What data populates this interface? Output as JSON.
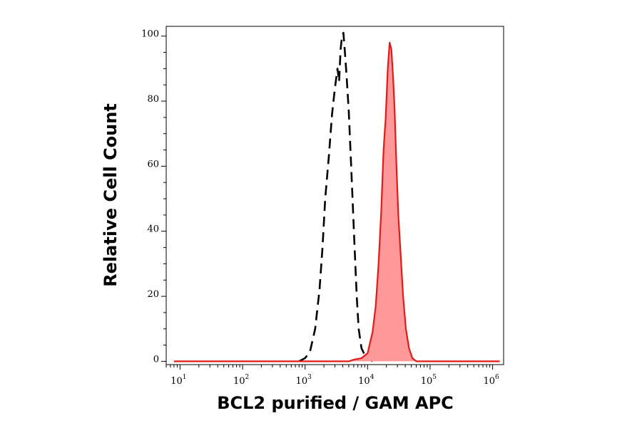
{
  "chart_data": {
    "type": "area",
    "title": "",
    "xlabel": "BCL2 purified / GAM APC",
    "ylabel": "Relative Cell Count",
    "x_scale": "log",
    "xlim": [
      6,
      1500000
    ],
    "ylim": [
      -1,
      103
    ],
    "x_ticks": [
      {
        "base": "10",
        "exp": "1",
        "value": 10
      },
      {
        "base": "10",
        "exp": "2",
        "value": 100
      },
      {
        "base": "10",
        "exp": "3",
        "value": 1000
      },
      {
        "base": "10",
        "exp": "4",
        "value": 10000
      },
      {
        "base": "10",
        "exp": "5",
        "value": 100000
      },
      {
        "base": "10",
        "exp": "6",
        "value": 1000000
      }
    ],
    "y_ticks": [
      {
        "label": "0",
        "value": 0
      },
      {
        "label": "20",
        "value": 20
      },
      {
        "label": "40",
        "value": 40
      },
      {
        "label": "60",
        "value": 60
      },
      {
        "label": "80",
        "value": 80
      },
      {
        "label": "100",
        "value": 100
      }
    ],
    "grid": false,
    "legend": "none",
    "series": [
      {
        "style": "dashed",
        "fill": "none",
        "color": "#000000",
        "points": [
          [
            800,
            0
          ],
          [
            1000,
            1
          ],
          [
            1200,
            3
          ],
          [
            1450,
            10
          ],
          [
            1700,
            22
          ],
          [
            1900,
            35
          ],
          [
            2100,
            50
          ],
          [
            2400,
            63
          ],
          [
            2700,
            76
          ],
          [
            3000,
            84
          ],
          [
            3300,
            90
          ],
          [
            3500,
            86
          ],
          [
            3700,
            96
          ],
          [
            3900,
            100
          ],
          [
            4100,
            101
          ],
          [
            4300,
            96
          ],
          [
            4600,
            88
          ],
          [
            5000,
            77
          ],
          [
            5400,
            62
          ],
          [
            5800,
            48
          ],
          [
            6200,
            35
          ],
          [
            6700,
            20
          ],
          [
            7200,
            10
          ],
          [
            8000,
            4
          ],
          [
            9000,
            2
          ],
          [
            10500,
            1
          ],
          [
            12000,
            0
          ]
        ]
      },
      {
        "style": "solid",
        "fill": "#ff9999",
        "color": "#e31a1a",
        "points": [
          [
            8,
            0
          ],
          [
            5000,
            0
          ],
          [
            6000,
            0.5
          ],
          [
            8000,
            1
          ],
          [
            10000,
            2.5
          ],
          [
            12000,
            9
          ],
          [
            13500,
            17
          ],
          [
            15000,
            30
          ],
          [
            16500,
            46
          ],
          [
            18000,
            65
          ],
          [
            19500,
            75
          ],
          [
            21000,
            90
          ],
          [
            22500,
            98
          ],
          [
            24000,
            96
          ],
          [
            25500,
            88
          ],
          [
            27000,
            78
          ],
          [
            29000,
            60
          ],
          [
            31000,
            45
          ],
          [
            34000,
            32
          ],
          [
            37000,
            20
          ],
          [
            41000,
            10
          ],
          [
            46000,
            4
          ],
          [
            52000,
            1
          ],
          [
            60000,
            0
          ],
          [
            1300000,
            0
          ]
        ]
      }
    ]
  }
}
